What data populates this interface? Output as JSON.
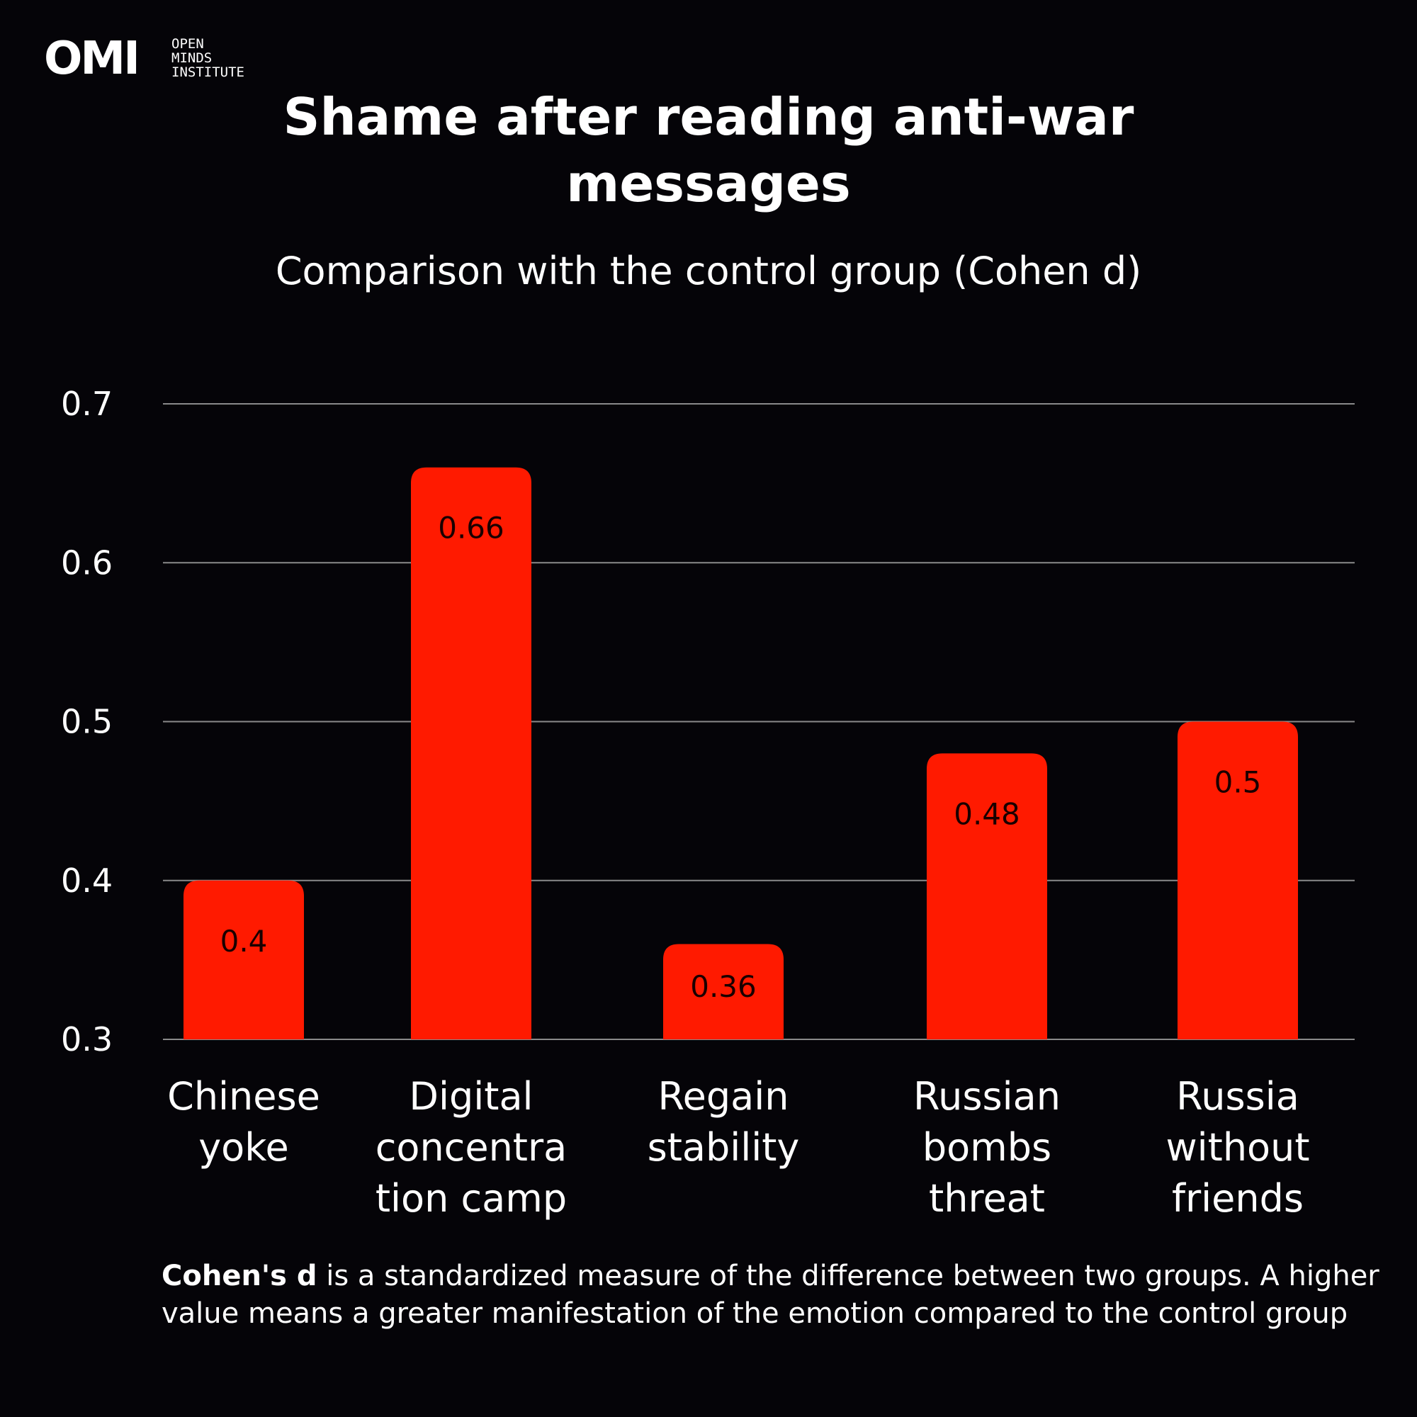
{
  "logo": {
    "mark": "OMI",
    "lines": [
      "OPEN",
      "MINDS",
      "INSTITUTE"
    ]
  },
  "note": {
    "term": "Cohen's d",
    "text": " is a standardized measure of the difference between two groups. A higher value means a greater manifestation of the emotion compared to the control group"
  },
  "colors": {
    "background": "#050408",
    "bar": "#ff1a00",
    "grid": "#8a8a8a",
    "text": "#ffffff",
    "label": "#1a0000"
  },
  "chart_data": {
    "type": "bar",
    "title": "Shame after reading anti-war messages",
    "subtitle": "Comparison with the control group (Cohen d)",
    "xlabel": "",
    "ylabel": "",
    "ylim": [
      0.3,
      0.7
    ],
    "yticks": [
      "0.3",
      "0.4",
      "0.5",
      "0.6",
      "0.7"
    ],
    "grid": true,
    "legend": "none",
    "categories": [
      [
        "Chinese",
        "yoke"
      ],
      [
        "Digital",
        "concentra",
        "tion camp"
      ],
      [
        "Regain",
        "stability"
      ],
      [
        "Russian",
        "bombs",
        "threat"
      ],
      [
        "Russia",
        "without",
        "friends"
      ]
    ],
    "values": [
      0.4,
      0.66,
      0.36,
      0.48,
      0.5
    ],
    "value_labels": [
      "0.4",
      "0.66",
      "0.36",
      "0.48",
      "0.5"
    ]
  }
}
